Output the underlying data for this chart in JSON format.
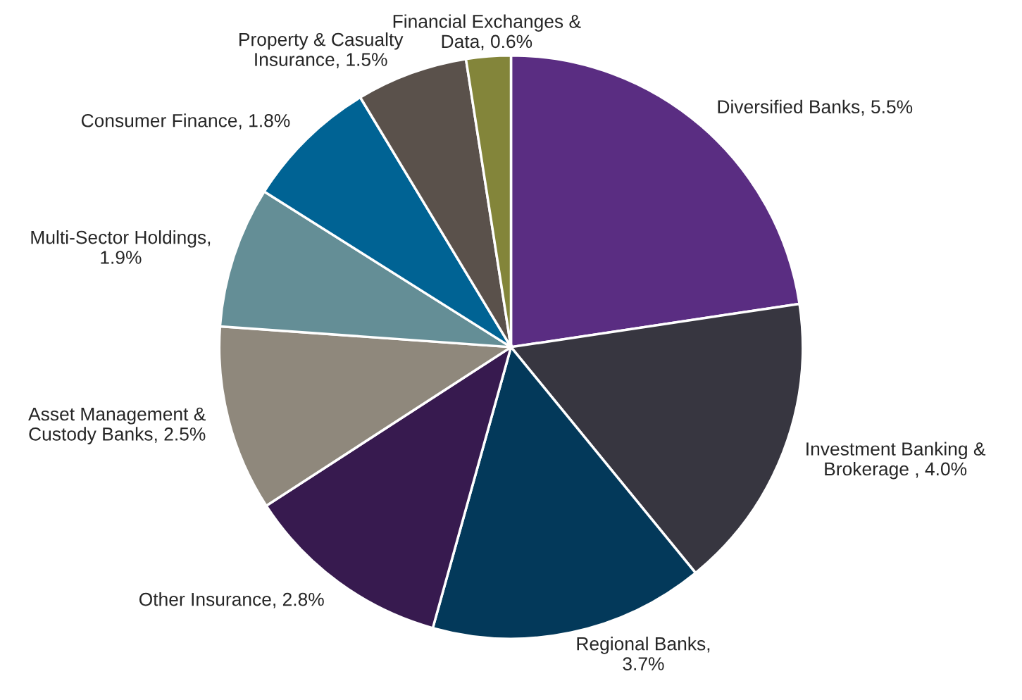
{
  "chart_data": {
    "type": "pie",
    "categories": [
      "Diversified Banks, 5.5%",
      "Investment Banking &\nBrokerage , 4.0%",
      "Regional Banks,\n3.7%",
      "Other Insurance, 2.8%",
      "Asset Management &\nCustody Banks, 2.5%",
      "Multi-Sector Holdings,\n1.9%",
      "Consumer Finance, 1.8%",
      "Property & Casualty\nInsurance, 1.5%",
      "Financial Exchanges &\nData, 0.6%"
    ],
    "values": [
      5.5,
      4.0,
      3.7,
      2.8,
      2.5,
      1.9,
      1.8,
      1.5,
      0.6
    ],
    "colors": [
      "#5a2d82",
      "#373640",
      "#03395a",
      "#371a4f",
      "#8f887c",
      "#648e96",
      "#006394",
      "#5a514b",
      "#83853a"
    ],
    "legend": false
  }
}
